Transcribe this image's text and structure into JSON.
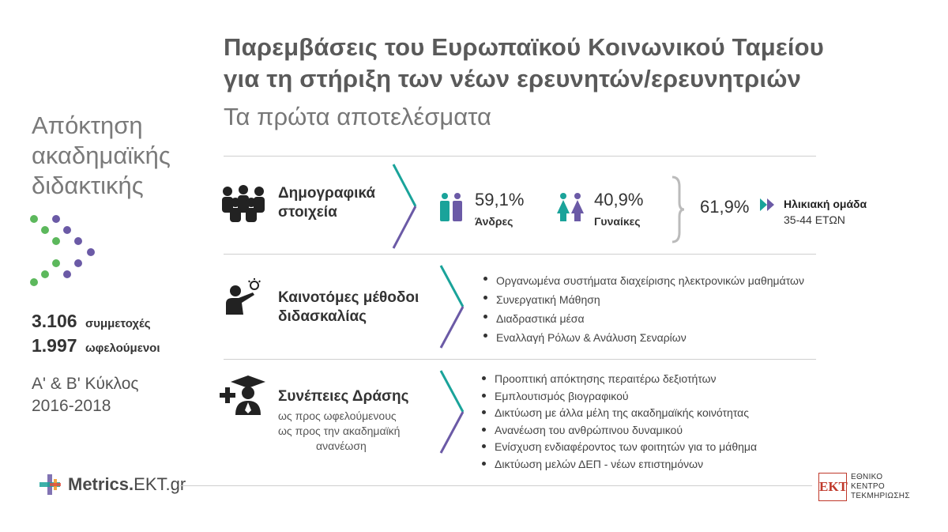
{
  "header": {
    "title_line1": "Παρεμβάσεις του Ευρωπαϊκού Κοινωνικού Ταμείου",
    "title_line2": "για τη στήριξη των νέων ερευνητών/ερευνητριών",
    "subtitle": "Τα πρώτα αποτελέσματα"
  },
  "left": {
    "title_line1": "Απόκτηση",
    "title_line2": "ακαδημαϊκής",
    "title_line3": "διδακτικής",
    "stat1_value": "3.106",
    "stat1_label": "συμμετοχές",
    "stat2_value": "1.997",
    "stat2_label": "ωφελούμενοι",
    "cycle_line1": "Α' & Β' Κύκλος",
    "cycle_line2": "2016-2018"
  },
  "demographics": {
    "label_line1": "Δημογραφικά",
    "label_line2": "στοιχεία",
    "men_pct": "59,1%",
    "men_label": "Άνδρες",
    "women_pct": "40,9%",
    "women_label": "Γυναίκες",
    "age_pct": "61,9%",
    "age_label": "Ηλικιακή ομάδα",
    "age_range": "35-44 ΕΤΩΝ"
  },
  "methods": {
    "label_line1": "Καινοτόμες μέθοδοι",
    "label_line2": "διδασκαλίας",
    "items": [
      "Οργανωμένα συστήματα διαχείρισης ηλεκτρονικών μαθημάτων",
      "Συνεργατική Μάθηση",
      "Διαδραστικά μέσα",
      "Εναλλαγή Ρόλων & Ανάλυση Σεναρίων"
    ]
  },
  "impact": {
    "label": "Συνέπειες Δράσης",
    "sub_line1": "ως προς ωφελούμενους",
    "sub_line2": "ως προς την ακαδημαϊκή",
    "sub_line3": "ανανέωση",
    "items": [
      "Προοπτική απόκτησης περαιτέρω δεξιοτήτων",
      "Εμπλουτισμός βιογραφικού",
      "Δικτύωση με άλλα μέλη της ακαδημαϊκής κοινότητας",
      "Ανανέωση του ανθρώπινου δυναμικού",
      "Ενίσχυση ενδιαφέροντος των φοιτητών για το μάθημα",
      "Δικτύωση μελών ΔΕΠ - νέων επιστημόνων"
    ]
  },
  "footer": {
    "logo_brand": "Metrics.",
    "logo_domain": "EKT.gr",
    "ekt_mark": "ΕΚΤ",
    "ekt_line1": "ΕΘΝΙΚΟ",
    "ekt_line2": "ΚΕΝΤΡΟ",
    "ekt_line3": "ΤΕΚΜΗΡΙΩΣΗΣ"
  },
  "colors": {
    "green": "#5cb85c",
    "purple": "#6b5aa6",
    "teal": "#1aa39a",
    "red": "#c0392b"
  }
}
